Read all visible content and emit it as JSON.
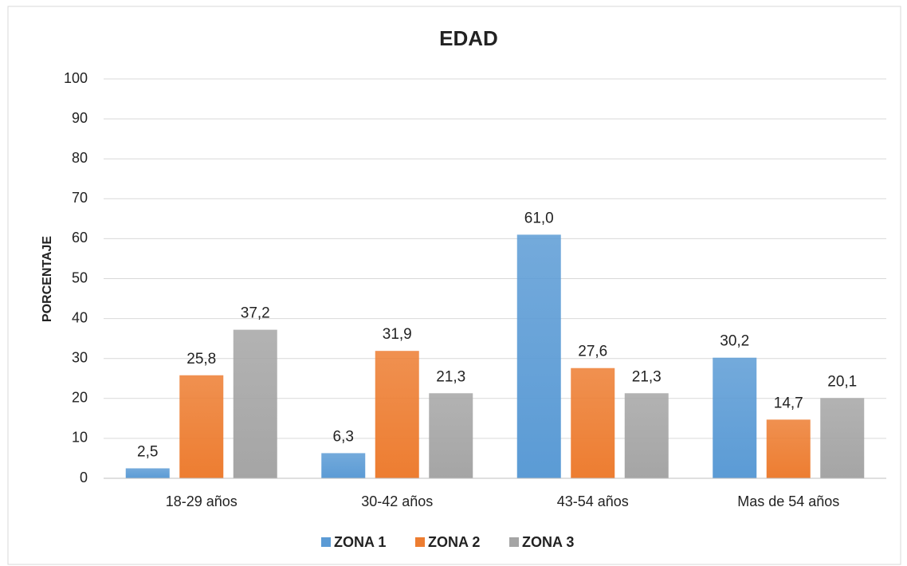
{
  "chart_data": {
    "type": "bar",
    "title": "EDAD",
    "y_label": "PORCENTAJE",
    "categories": [
      "18-29 años",
      "30-42 años",
      "43-54 años",
      "Mas de 54 años"
    ],
    "series": [
      {
        "name": "ZONA 1",
        "color": "#5b9bd5",
        "values": [
          2.5,
          6.3,
          61.0,
          30.2
        ],
        "value_labels": [
          "2,5",
          "6,3",
          "61,0",
          "30,2"
        ]
      },
      {
        "name": "ZONA 2",
        "color": "#ed7d31",
        "values": [
          25.8,
          31.9,
          27.6,
          14.7
        ],
        "value_labels": [
          "25,8",
          "31,9",
          "27,6",
          "14,7"
        ]
      },
      {
        "name": "ZONA 3",
        "color": "#a5a5a5",
        "values": [
          37.2,
          21.3,
          21.3,
          20.1
        ],
        "value_labels": [
          "37,2",
          "21,3",
          "21,3",
          "20,1"
        ]
      }
    ],
    "ylim": [
      0,
      100
    ],
    "yticks": [
      0,
      10,
      20,
      30,
      40,
      50,
      60,
      70,
      80,
      90,
      100
    ],
    "grid": true,
    "legend": "bottom"
  }
}
